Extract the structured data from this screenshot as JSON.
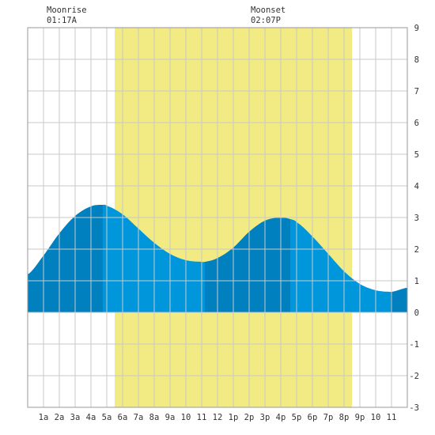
{
  "moon": {
    "rise": {
      "label": "Moonrise",
      "time": "01:17A"
    },
    "set": {
      "label": "Moonset",
      "time": "02:07P"
    }
  },
  "colors": {
    "background": "#ffffff",
    "grid": "#c8c8c8",
    "daylight": "#f2ea82",
    "tide_light": "#0096dc",
    "tide_dark": "#0080bf",
    "text": "#333333"
  },
  "chart_data": {
    "type": "area",
    "title": "",
    "xlabel": "",
    "ylabel": "",
    "xlim": [
      0,
      24
    ],
    "ylim": [
      -3,
      9
    ],
    "grid": true,
    "x_tick_labels": [
      "1a",
      "2a",
      "3a",
      "4a",
      "5a",
      "6a",
      "7a",
      "8a",
      "9a",
      "10",
      "11",
      "12",
      "1p",
      "2p",
      "3p",
      "4p",
      "5p",
      "6p",
      "7p",
      "8p",
      "9p",
      "10",
      "11"
    ],
    "y_tick_labels": [
      "-3",
      "-2",
      "-1",
      "0",
      "1",
      "2",
      "3",
      "4",
      "5",
      "6",
      "7",
      "8",
      "9"
    ],
    "daylight": {
      "start": 5.5,
      "end": 20.5
    },
    "series": [
      {
        "x": [
          0,
          1,
          2,
          3,
          4,
          4.75,
          5,
          6,
          7,
          8,
          9,
          10,
          11,
          11.2,
          12,
          13,
          14,
          15,
          16,
          16.6,
          17,
          18,
          19,
          20,
          21,
          22,
          22.95,
          23,
          24
        ],
        "y": [
          1.2,
          1.8,
          2.5,
          3.05,
          3.35,
          3.4,
          3.37,
          3.1,
          2.65,
          2.2,
          1.85,
          1.65,
          1.6,
          1.6,
          1.72,
          2.05,
          2.55,
          2.9,
          3.0,
          2.95,
          2.85,
          2.4,
          1.85,
          1.3,
          0.9,
          0.7,
          0.65,
          0.65,
          0.78
        ]
      }
    ],
    "shading_boundaries": [
      4.75,
      11.2,
      16.6,
      22.95
    ]
  }
}
